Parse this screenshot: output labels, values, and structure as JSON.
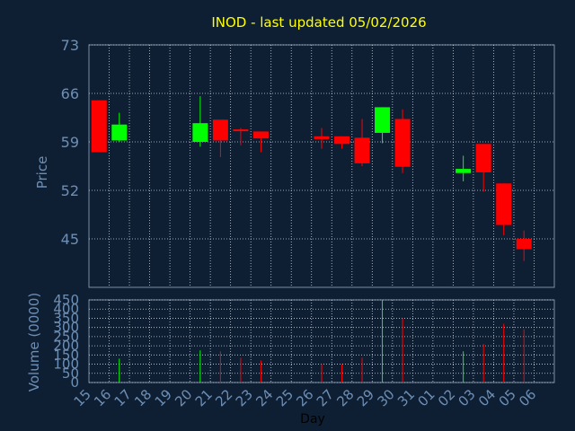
{
  "chart_data": [
    {
      "type": "candlestick",
      "title": "INOD - last updated 05/02/2026",
      "ylabel": "Price",
      "ylim": [
        38,
        73
      ],
      "yticks": [
        "73",
        "66",
        "59",
        "52",
        "45"
      ],
      "grid": true,
      "x": [
        "15",
        "16",
        "17",
        "18",
        "19",
        "20",
        "21",
        "22",
        "23",
        "24",
        "25",
        "26",
        "27",
        "28",
        "29",
        "30",
        "31",
        "01",
        "02",
        "03",
        "04",
        "05",
        "06"
      ],
      "candles": [
        {
          "x": "15",
          "open": 65.0,
          "high": 65.0,
          "low": 57.5,
          "close": 57.5
        },
        {
          "x": "16",
          "open": 59.2,
          "high": 63.2,
          "low": 59.0,
          "close": 61.5
        },
        {
          "x": "20",
          "open": 59.0,
          "high": 65.6,
          "low": 58.3,
          "close": 61.7
        },
        {
          "x": "21",
          "open": 62.2,
          "high": 62.2,
          "low": 56.8,
          "close": 59.2
        },
        {
          "x": "22",
          "open": 60.8,
          "high": 61.0,
          "low": 58.5,
          "close": 60.6
        },
        {
          "x": "23",
          "open": 60.5,
          "high": 60.5,
          "low": 57.5,
          "close": 59.5
        },
        {
          "x": "26",
          "open": 59.8,
          "high": 61.0,
          "low": 58.0,
          "close": 59.4
        },
        {
          "x": "27",
          "open": 59.8,
          "high": 59.8,
          "low": 58.0,
          "close": 58.7
        },
        {
          "x": "28",
          "open": 59.6,
          "high": 62.3,
          "low": 55.5,
          "close": 55.9
        },
        {
          "x": "29",
          "open": 60.3,
          "high": 64.0,
          "low": 58.8,
          "close": 64.0
        },
        {
          "x": "30",
          "open": 62.3,
          "high": 63.7,
          "low": 54.5,
          "close": 55.4
        },
        {
          "x": "02",
          "open": 54.5,
          "high": 57.0,
          "low": 53.3,
          "close": 55.1
        },
        {
          "x": "03",
          "open": 58.7,
          "high": 58.7,
          "low": 51.8,
          "close": 54.6
        },
        {
          "x": "04",
          "open": 53.0,
          "high": 53.0,
          "low": 45.5,
          "close": 47.0
        },
        {
          "x": "05",
          "open": 45.0,
          "high": 46.2,
          "low": 41.8,
          "close": 43.5
        }
      ]
    },
    {
      "type": "bar",
      "xlabel": "Day",
      "ylabel": "Volume (0000)",
      "ylim": [
        0,
        450
      ],
      "yticks": [
        "450",
        "400",
        "350",
        "300",
        "250",
        "200",
        "150",
        "100",
        "50",
        "0"
      ],
      "categories": [
        "15",
        "16",
        "17",
        "18",
        "19",
        "20",
        "21",
        "22",
        "23",
        "24",
        "25",
        "26",
        "27",
        "28",
        "29",
        "30",
        "31",
        "01",
        "02",
        "03",
        "04",
        "05",
        "06"
      ],
      "values": [
        0,
        130,
        0,
        0,
        0,
        175,
        170,
        135,
        120,
        0,
        0,
        100,
        100,
        135,
        460,
        350,
        0,
        0,
        170,
        210,
        320,
        290,
        0
      ],
      "direction": [
        "",
        "up",
        "",
        "",
        "",
        "up",
        "down",
        "down",
        "down",
        "",
        "",
        "down",
        "down",
        "down",
        "up",
        "down",
        "",
        "",
        "up",
        "down",
        "down",
        "down",
        ""
      ]
    }
  ],
  "colors": {
    "background": "#0f1f33",
    "title": "#ffff00",
    "axis_text": "#6d8fb5",
    "frame": "#7a8da4",
    "up": "#00ff00",
    "down": "#ff0000"
  }
}
